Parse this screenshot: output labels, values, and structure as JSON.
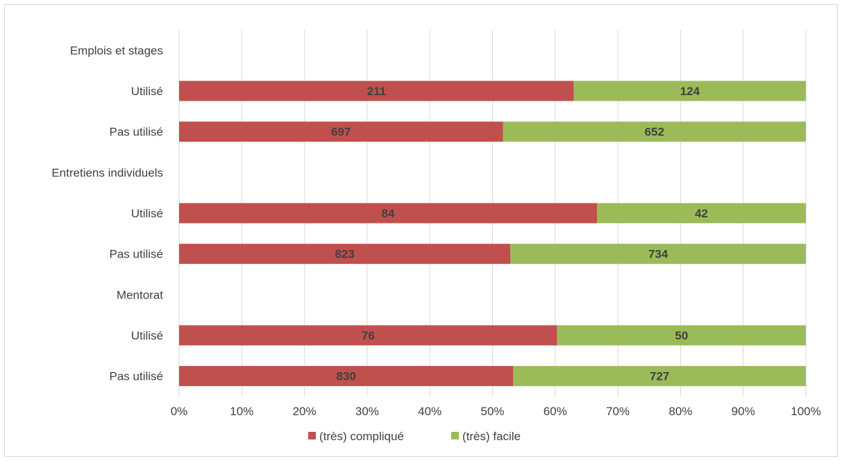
{
  "chart_data": {
    "type": "bar",
    "orientation": "horizontal",
    "stacked": "percent",
    "title": "",
    "xlabel": "",
    "ylabel": "",
    "xlim": [
      0,
      100
    ],
    "x_ticks": [
      "0%",
      "10%",
      "20%",
      "30%",
      "40%",
      "50%",
      "60%",
      "70%",
      "80%",
      "90%",
      "100%"
    ],
    "grid": true,
    "legend_position": "bottom",
    "rows": [
      {
        "label": "Emplois et stages",
        "is_group": true
      },
      {
        "label": "Utilisé",
        "values": [
          211,
          124
        ]
      },
      {
        "label": "Pas utilisé",
        "values": [
          697,
          652
        ]
      },
      {
        "label": "Entretiens individuels",
        "is_group": true
      },
      {
        "label": "Utilisé",
        "values": [
          84,
          42
        ]
      },
      {
        "label": "Pas utilisé",
        "values": [
          823,
          734
        ]
      },
      {
        "label": "Mentorat",
        "is_group": true
      },
      {
        "label": "Utilisé",
        "values": [
          76,
          50
        ]
      },
      {
        "label": "Pas utilisé",
        "values": [
          830,
          727
        ]
      }
    ],
    "series": [
      {
        "name": "(très) compliqué",
        "color": "#c0504d"
      },
      {
        "name": "(très) facile",
        "color": "#9bbb59"
      }
    ]
  }
}
